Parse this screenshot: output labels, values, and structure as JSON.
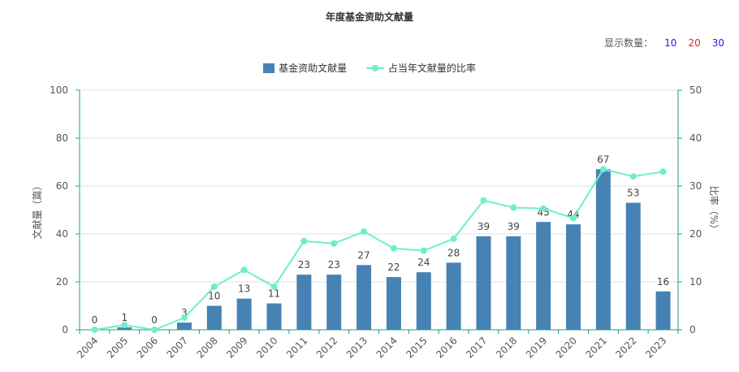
{
  "title": "年度基金资助文献量",
  "count_selector": {
    "label": "显示数量：",
    "options": [
      {
        "label": "10",
        "color": "#1a1aff"
      },
      {
        "label": "20",
        "color": "#e62020"
      },
      {
        "label": "30",
        "color": "#1a1aff"
      }
    ]
  },
  "colors": {
    "bar": "#4682b4",
    "line": "#6ef0c3",
    "axis": "#1aa080",
    "grid": "#e0e0e0"
  },
  "chart_data": {
    "type": "bar",
    "categories": [
      "2004",
      "2005",
      "2006",
      "2007",
      "2008",
      "2009",
      "2010",
      "2011",
      "2012",
      "2013",
      "2014",
      "2015",
      "2016",
      "2017",
      "2018",
      "2019",
      "2020",
      "2021",
      "2022",
      "2023"
    ],
    "series": [
      {
        "name": "基金资助文献量",
        "type": "bar",
        "axis": "left",
        "values": [
          0,
          1,
          0,
          3,
          10,
          13,
          11,
          23,
          23,
          27,
          22,
          24,
          28,
          39,
          39,
          45,
          44,
          67,
          53,
          16
        ]
      },
      {
        "name": "占当年文献量的比率",
        "type": "line",
        "axis": "right",
        "values": [
          0,
          1,
          0,
          2.5,
          9,
          12.5,
          9,
          18.5,
          18,
          20.5,
          17,
          16.5,
          19,
          27,
          25.5,
          25.3,
          23.3,
          33.5,
          32,
          33
        ]
      }
    ],
    "ylabel": "文献量（篇）",
    "y2label": "比率（%）",
    "ylim": [
      0,
      100
    ],
    "y2lim": [
      0,
      50
    ],
    "yticks": [
      "0",
      "20",
      "40",
      "60",
      "80",
      "100"
    ],
    "y2ticks": [
      "0",
      "10",
      "20",
      "30",
      "40",
      "50"
    ],
    "grid": true,
    "legend_position": "top-center"
  }
}
